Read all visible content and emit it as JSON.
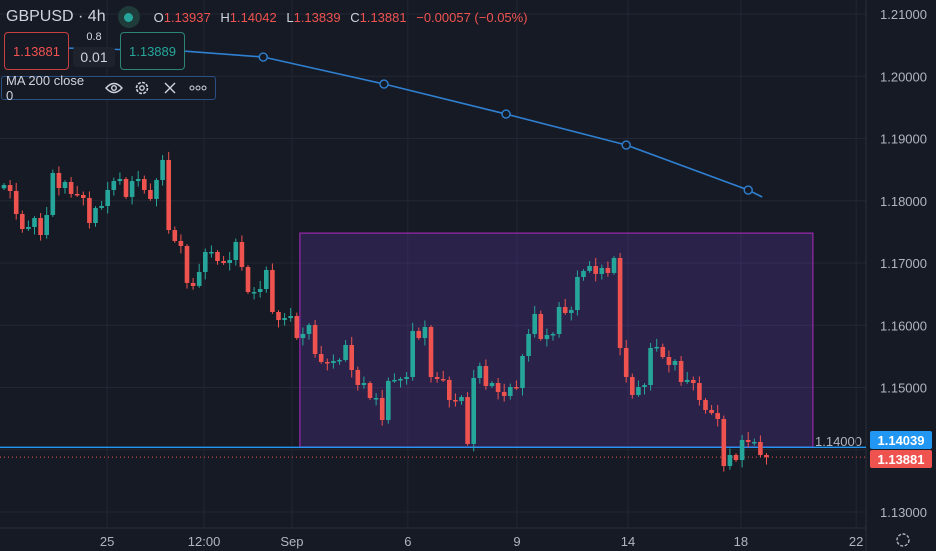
{
  "header": {
    "symbol": "GBPUSD",
    "interval": "4h",
    "open_label": "O",
    "open": "1.13937",
    "high_label": "H",
    "high": "1.14042",
    "low_label": "L",
    "low": "1.13839",
    "close_label": "C",
    "close": "1.13881",
    "change": "−0.00057 (−0.05%)"
  },
  "trade": {
    "sell": "1.13881",
    "buy": "1.13889",
    "lot": "0.8",
    "spread": "0.01"
  },
  "indicator": {
    "label": "MA 200 close 0",
    "icons": [
      "eye-icon",
      "gear-icon",
      "close-icon",
      "more-icon"
    ]
  },
  "price_labels": {
    "line": "1.14039",
    "current": "1.13881"
  },
  "colors": {
    "up": "#26a69a",
    "down": "#ef5350",
    "ma": "#2f80d1",
    "line": "#2196f3",
    "box_border": "#9c27b0",
    "box_fill": "rgba(103,58,183,0.25)",
    "bg": "#161a25"
  },
  "chart_data": {
    "type": "candlestick",
    "symbol": "GBPUSD",
    "interval": "4h",
    "ylim": [
      1.125,
      1.215
    ],
    "y_ticks": [
      "1.21000",
      "1.20000",
      "1.19000",
      "1.18000",
      "1.17000",
      "1.16000",
      "1.15000",
      "1.14000",
      "1.13000"
    ],
    "y_tick_values": [
      1.21,
      1.2,
      1.19,
      1.18,
      1.17,
      1.16,
      1.15,
      1.14,
      1.13
    ],
    "x_ticks": [
      {
        "label": "25",
        "bar": 16.9
      },
      {
        "label": "12:00",
        "bar": 32.8
      },
      {
        "label": "Sep",
        "bar": 47.2
      },
      {
        "label": "6",
        "bar": 66.2
      },
      {
        "label": "9",
        "bar": 84.1
      },
      {
        "label": "14",
        "bar": 102.3
      },
      {
        "label": "18",
        "bar": 120.8
      },
      {
        "label": "22",
        "bar": 139.7
      }
    ],
    "first_open": 1.182,
    "closes": [
      1.18253,
      1.18157,
      1.17787,
      1.17546,
      1.17578,
      1.17723,
      1.1745,
      1.17771,
      1.18446,
      1.18205,
      1.18301,
      1.18109,
      1.18093,
      1.18045,
      1.17643,
      1.17884,
      1.17916,
      1.18173,
      1.18317,
      1.18349,
      1.18061,
      1.18317,
      1.18349,
      1.18173,
      1.18029,
      1.18333,
      1.18655,
      1.1753,
      1.17354,
      1.17273,
      1.16679,
      1.16631,
      1.16856,
      1.17177,
      1.17177,
      1.17032,
      1.17,
      1.17048,
      1.17337,
      1.16936,
      1.16534,
      1.16534,
      1.16582,
      1.16888,
      1.16213,
      1.16084,
      1.16116,
      1.16148,
      1.15795,
      1.1586,
      1.16004,
      1.15538,
      1.1541,
      1.15394,
      1.15426,
      1.15442,
      1.15683,
      1.15281,
      1.1504,
      1.15072,
      1.14831,
      1.14831,
      1.14478,
      1.15105,
      1.15121,
      1.15137,
      1.15169,
      1.15908,
      1.15795,
      1.15972,
      1.15169,
      1.15137,
      1.15121,
      1.14799,
      1.14783,
      1.14847,
      1.14093,
      1.15153,
      1.15345,
      1.15024,
      1.15072,
      1.14928,
      1.14864,
      1.15008,
      1.14992,
      1.15506,
      1.1586,
      1.16181,
      1.15779,
      1.15843,
      1.1586,
      1.16293,
      1.16197,
      1.16245,
      1.16775,
      1.16872,
      1.16952,
      1.16824,
      1.1692,
      1.1684,
      1.1708,
      1.15635,
      1.15169,
      1.1488,
      1.15008,
      1.1504,
      1.15635,
      1.15651,
      1.1549,
      1.15362,
      1.15426,
      1.15088,
      1.15121,
      1.15072,
      1.14799,
      1.14639,
      1.1459,
      1.14494,
      1.13739,
      1.13916,
      1.13835,
      1.14157,
      1.14125,
      1.14125,
      1.13916,
      1.13881
    ],
    "ma200": [
      [
        0,
        1.2048
      ],
      [
        30,
        1.204
      ],
      [
        42.5,
        1.20309
      ],
      [
        62.3,
        1.19875
      ],
      [
        82.3,
        1.19393
      ],
      [
        102,
        1.18895
      ],
      [
        122,
        1.18172
      ],
      [
        124.3,
        1.1806
      ]
    ],
    "ma_markers": [
      42.5,
      62.3,
      82.3,
      102,
      122
    ],
    "rectangle": {
      "bar_from": 48.5,
      "bar_to": 132.6,
      "price_top": 1.1748,
      "price_bottom": 1.14044
    },
    "horizontal_line": 1.14039,
    "current_price": 1.13881
  }
}
